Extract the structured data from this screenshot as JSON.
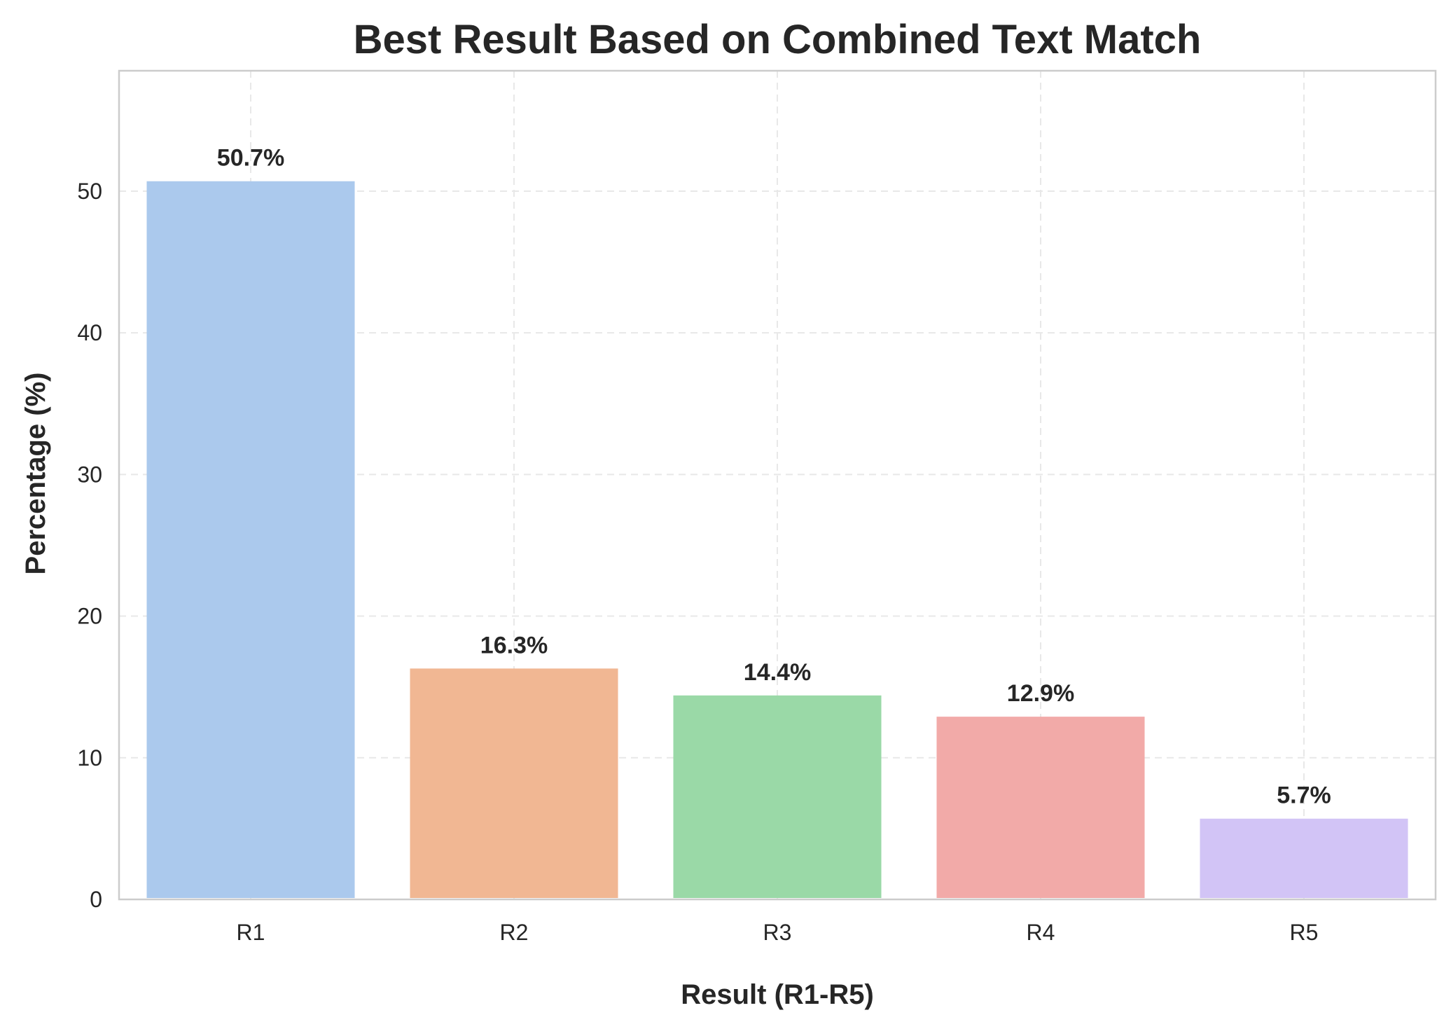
{
  "chart_data": {
    "type": "bar",
    "title": "Best Result Based on Combined Text Match",
    "xlabel": "Result (R1-R5)",
    "ylabel": "Percentage (%)",
    "categories": [
      "R1",
      "R2",
      "R3",
      "R4",
      "R5"
    ],
    "values": [
      50.7,
      16.3,
      14.4,
      12.9,
      5.7
    ],
    "data_labels": [
      "50.7%",
      "16.3%",
      "14.4%",
      "12.9%",
      "5.7%"
    ],
    "colors": [
      "#abc9ed",
      "#f1b793",
      "#9ad9a7",
      "#f2aaa8",
      "#d2c4f6"
    ],
    "ylim": [
      0,
      58.5
    ],
    "yticks": [
      0,
      10,
      20,
      30,
      40,
      50
    ],
    "grid": true,
    "legend": "none"
  }
}
